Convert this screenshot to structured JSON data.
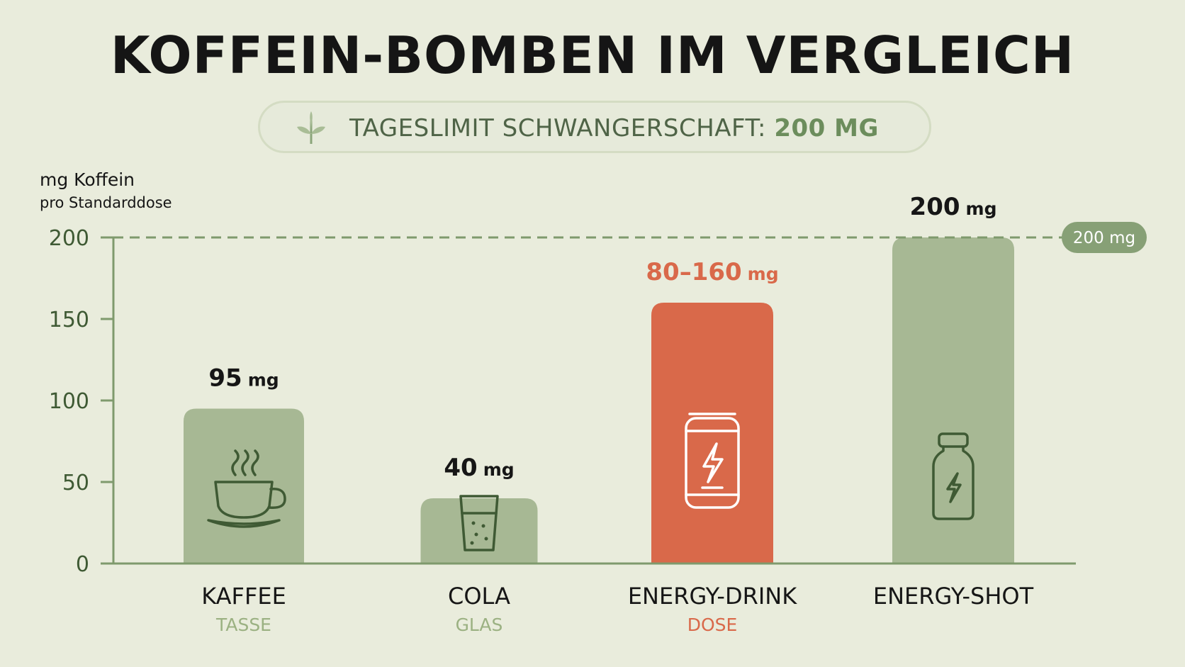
{
  "title": "KOFFEIN-BOMBEN IM VERGLEICH",
  "limit": {
    "label": "TAGESLIMIT SCHWANGERSCHAFT:",
    "value": "200 MG",
    "icon": "leaf-icon"
  },
  "colors": {
    "bar_default": "#a7b894",
    "bar_highlight": "#d9694a",
    "axis": "#7f9a6d",
    "text_dark": "#161616",
    "label_green": "#9bb182",
    "label_orange": "#d9694a",
    "icon_green": "#3f5a34"
  },
  "chart_data": {
    "type": "bar",
    "ylabel": [
      "mg Koffein",
      "pro Standarddose"
    ],
    "ylim": [
      0,
      200
    ],
    "yticks": [
      0,
      50,
      100,
      150,
      200
    ],
    "reference_line": {
      "value": 200,
      "label": "200 mg",
      "style": "dashed"
    },
    "categories": [
      "KAFFEE",
      "COLA",
      "ENERGY-DRINK",
      "ENERGY-SHOT"
    ],
    "sublabels": [
      "TASSE",
      "GLAS",
      "DOSE",
      ""
    ],
    "values": [
      95,
      40,
      160,
      200
    ],
    "range_low": [
      null,
      null,
      80,
      null
    ],
    "value_labels": [
      {
        "num": "95",
        "unit": "mg"
      },
      {
        "num": "40",
        "unit": "mg"
      },
      {
        "num": "80–160",
        "unit": "mg"
      },
      {
        "num": "200",
        "unit": "mg"
      }
    ],
    "highlight": [
      false,
      false,
      true,
      false
    ],
    "icons": [
      "coffee-cup-icon",
      "cola-glass-icon",
      "energy-can-icon",
      "shot-bottle-icon"
    ],
    "legend": "none",
    "grid": false
  }
}
